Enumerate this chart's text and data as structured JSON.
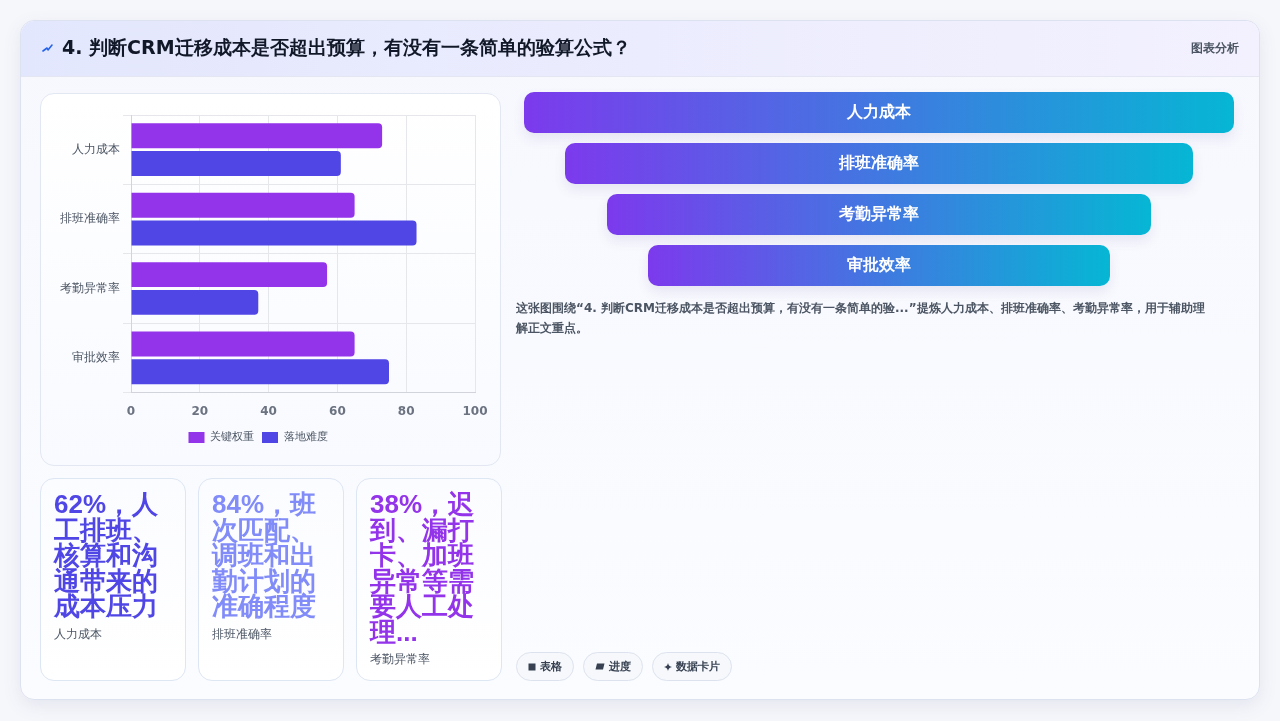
{
  "chart_data": [
    {
      "type": "other",
      "title": "4. 判断CRM迁移成本是否超出预算，有没有一条简单的验算公式？",
      "annotations": [
        "图表分析"
      ]
    },
    {
      "type": "bar",
      "orientation": "horizontal",
      "categories": [
        "人力成本",
        "排班准确率",
        "考勤异常率",
        "审批效率"
      ],
      "series": [
        {
          "name": "关键权重",
          "color": "#9333ea",
          "values": [
            73,
            65,
            57,
            65
          ]
        },
        {
          "name": "落地难度",
          "color": "#4f46e5",
          "values": [
            61,
            83,
            37,
            75
          ]
        }
      ],
      "xlim": [
        0,
        100
      ],
      "xticks": [
        0,
        20,
        40,
        60,
        80,
        100
      ],
      "grid": true,
      "legend": "bottom"
    },
    {
      "type": "other",
      "categories": [
        "人力成本",
        "排班准确率",
        "考勤异常率",
        "审批效率"
      ],
      "annotations": [
        "这张图围绕“4. 判断CRM迁移成本是否超出预算，有没有一条简单的验...”提炼人力成本、排班准确率、考勤异常率，用于辅助理解正文重点。"
      ]
    },
    {
      "type": "other",
      "title": "62%，人工排班、核算和沟通带来的成本压力",
      "subtitle": "人力成本",
      "color": "#4f46e5"
    },
    {
      "type": "other",
      "title": "84%，班次匹配、调班和出勤计划的准确程度",
      "subtitle": "排班准确率",
      "color": "#818cf8"
    },
    {
      "type": "other",
      "title": "38%，迟到、漏打卡、加班异常等需要人工处理...",
      "subtitle": "考勤异常率",
      "color": "#9333ea"
    },
    {
      "type": "other",
      "annotations": [
        "表格",
        "进度",
        "数据卡片"
      ]
    }
  ]
}
